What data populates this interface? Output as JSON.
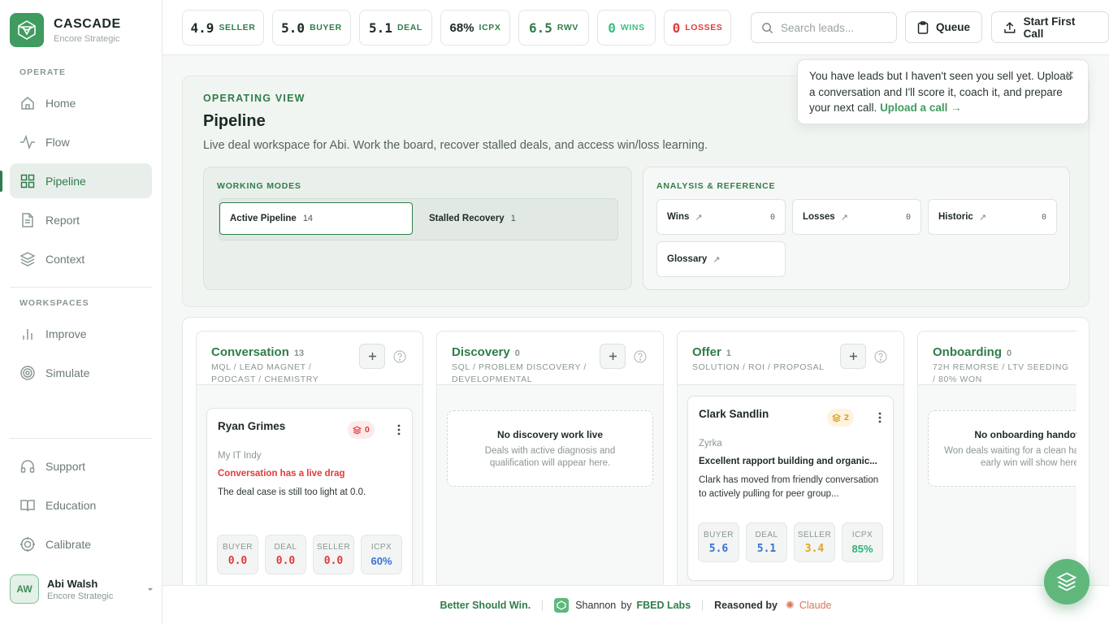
{
  "brand": {
    "name": "CASCADE",
    "sub": "Encore Strategic"
  },
  "sidebar": {
    "operate_label": "OPERATE",
    "workspaces_label": "WORKSPACES",
    "items": [
      {
        "label": "Home",
        "icon": "home-icon"
      },
      {
        "label": "Flow",
        "icon": "activity-icon"
      },
      {
        "label": "Pipeline",
        "icon": "grid-icon",
        "active": true
      },
      {
        "label": "Report",
        "icon": "document-icon"
      },
      {
        "label": "Context",
        "icon": "layers-icon"
      }
    ],
    "workspace_items": [
      {
        "label": "Improve",
        "icon": "bar-chart-icon"
      },
      {
        "label": "Simulate",
        "icon": "target-icon"
      }
    ],
    "bottom_items": [
      {
        "label": "Support",
        "icon": "headphones-icon"
      },
      {
        "label": "Education",
        "icon": "book-icon"
      },
      {
        "label": "Calibrate",
        "icon": "crosshair-icon"
      }
    ],
    "user": {
      "initials": "AW",
      "name": "Abi Walsh",
      "org": "Encore Strategic"
    }
  },
  "topbar": {
    "metrics": [
      {
        "value": "4.9",
        "label": "SELLER",
        "value_color": "#1f2a24",
        "label_color": "#2f7d49"
      },
      {
        "value": "5.0",
        "label": "BUYER",
        "value_color": "#1f2a24",
        "label_color": "#2f7d49"
      },
      {
        "value": "5.1",
        "label": "DEAL",
        "value_color": "#1f2a24",
        "label_color": "#2f7d49"
      },
      {
        "value": "68%",
        "label": "ICPX",
        "value_color": "#1f2a24",
        "label_color": "#2f7d49"
      },
      {
        "value": "6.5",
        "label": "RWV",
        "value_color": "#2f7d49",
        "label_color": "#2f7d49"
      },
      {
        "value": "0",
        "label": "WINS",
        "value_color": "#3fbf7f",
        "label_color": "#3fbf7f"
      },
      {
        "value": "0",
        "label": "LOSSES",
        "value_color": "#e23a3a",
        "label_color": "#e23a3a"
      }
    ],
    "search_placeholder": "Search leads...",
    "queue_label": "Queue",
    "start_call_label": "Start First Call"
  },
  "toast": {
    "message": "You have leads but I haven't seen you sell yet. Upload a conversation and I'll score it, coach it, and prepare your next call.",
    "link": "Upload a call →",
    "close": "✕"
  },
  "operating": {
    "eyebrow": "OPERATING VIEW",
    "title": "Pipeline",
    "subtitle": "Live deal workspace for Abi. Work the board, recover stalled deals, and access win/loss learning.",
    "modes_label": "WORKING MODES",
    "modes": [
      {
        "label": "Active Pipeline",
        "count": "14",
        "selected": true
      },
      {
        "label": "Stalled Recovery",
        "count": "1",
        "selected": false
      }
    ],
    "refs_label": "ANALYSIS & REFERENCE",
    "refs": [
      {
        "label": "Wins",
        "count": "0"
      },
      {
        "label": "Losses",
        "count": "0"
      },
      {
        "label": "Historic",
        "count": "0"
      },
      {
        "label": "Glossary",
        "count": ""
      }
    ],
    "ref_arrow": "↗"
  },
  "board": {
    "columns": [
      {
        "title": "Conversation",
        "count": "13",
        "subtitle": "MQL / LEAD MAGNET / PODCAST / CHEMISTRY"
      },
      {
        "title": "Discovery",
        "count": "0",
        "subtitle": "SQL / PROBLEM DISCOVERY / DEVELOPMENTAL",
        "empty_title": "No discovery work live",
        "empty_desc": "Deals with active diagnosis and qualification will appear here."
      },
      {
        "title": "Offer",
        "count": "1",
        "subtitle": "SOLUTION / ROI / PROPOSAL"
      },
      {
        "title": "Onboarding",
        "count": "0",
        "subtitle": "72H REMORSE / LTV SEEDING / 80% WON",
        "empty_title": "No onboarding handoffs",
        "empty_desc": "Won deals waiting for a clean handoff and early win will show here."
      }
    ],
    "deals": [
      {
        "name": "Ryan Grimes",
        "badge": "0",
        "badge_color": "#e23a3a",
        "badge_bg": "#fdeaea",
        "org": "My IT Indy",
        "alert": "Conversation has a live drag",
        "desc": "The deal case is still too light at 0.0.",
        "scores": [
          {
            "label": "BUYER",
            "value": "0.0",
            "color": "#e23a3a"
          },
          {
            "label": "DEAL",
            "value": "0.0",
            "color": "#e23a3a"
          },
          {
            "label": "SELLER",
            "value": "0.0",
            "color": "#e23a3a"
          },
          {
            "label": "ICPX",
            "value": "60%",
            "color": "#3a6fd8"
          }
        ]
      },
      {
        "name": "Clark Sandlin",
        "badge": "2",
        "badge_color": "#d99a12",
        "badge_bg": "#fdf3df",
        "org": "Zyrka",
        "headline": "Excellent rapport building and organic...",
        "desc": "Clark has moved from friendly conversation to actively pulling for peer group...",
        "scores": [
          {
            "label": "BUYER",
            "value": "5.6",
            "color": "#3a6fd8"
          },
          {
            "label": "DEAL",
            "value": "5.1",
            "color": "#3a6fd8"
          },
          {
            "label": "SELLER",
            "value": "3.4",
            "color": "#e6a21a"
          },
          {
            "label": "ICPX",
            "value": "85%",
            "color": "#2fb37a"
          }
        ]
      }
    ]
  },
  "footer": {
    "tagline": "Better Should Win.",
    "product": "Shannon",
    "by": "by",
    "company": "FBED Labs",
    "reasoned": "Reasoned by",
    "engine": "Claude"
  }
}
